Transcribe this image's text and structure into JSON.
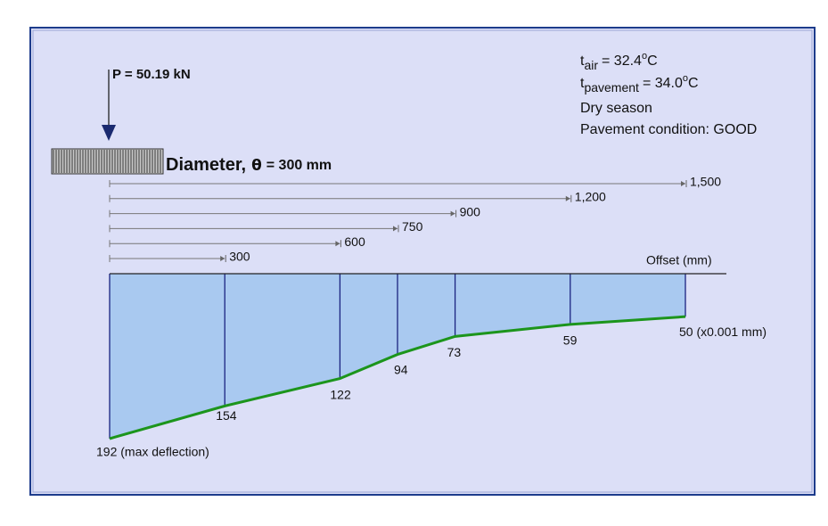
{
  "load": "P = 50.19 kN",
  "plate": {
    "label": "Diameter,",
    "symbol": "θ",
    "size": "= 300 mm"
  },
  "conditions": {
    "air": {
      "symbol": "t",
      "subscript": "air",
      "value": "= 32.4",
      "degree": "o",
      "unit": "C"
    },
    "pavement": {
      "symbol": "t",
      "subscript": "pavement",
      "value": "= 34.0",
      "degree": "o",
      "unit": "C"
    },
    "season": "Dry season",
    "condition": "Pavement condition: GOOD"
  },
  "chart_data": {
    "type": "area",
    "x": [
      0,
      300,
      600,
      750,
      900,
      1200,
      1500
    ],
    "values": [
      192,
      154,
      122,
      94,
      73,
      59,
      50
    ],
    "value_labels": [
      "192 (max deflection)",
      "154",
      "122",
      "94",
      "73",
      "59",
      "50 (x0.001 mm)"
    ],
    "xlim": [
      0,
      1500
    ],
    "ylim": [
      0,
      192
    ],
    "xticks": [
      300,
      600,
      750,
      900,
      {
        "value": 1200,
        "label": "1,200"
      },
      {
        "value": 1500,
        "label": "1,500"
      }
    ],
    "x_label": "Offset (mm)",
    "color": "#a9c9f0",
    "line_color": "#1c951c",
    "divider_color": "#1a2380"
  }
}
